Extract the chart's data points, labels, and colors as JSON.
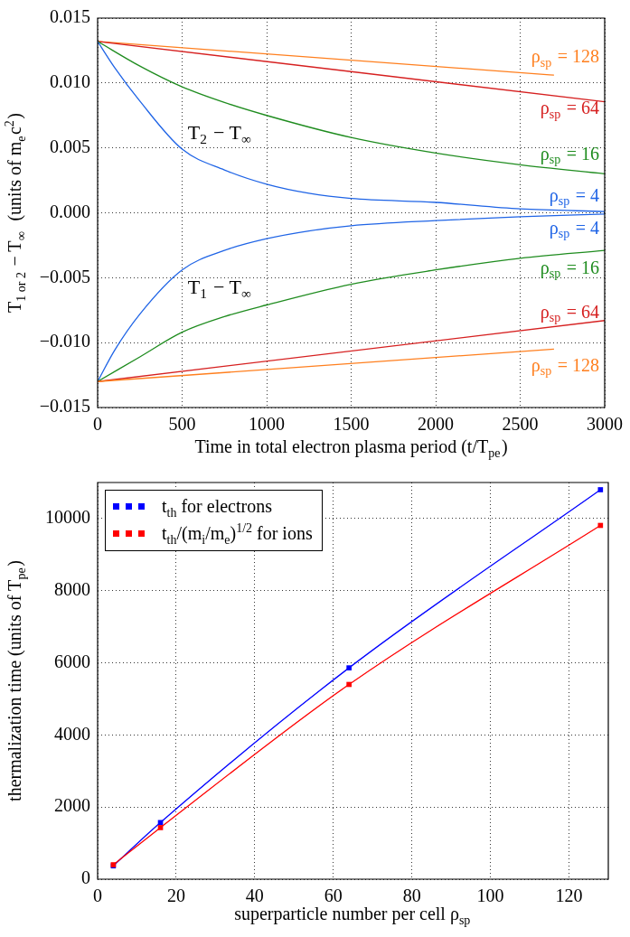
{
  "chart_data": [
    {
      "type": "line",
      "xlabel": "Time in total electron plasma period (t/T$_{pe}$)",
      "ylabel": "T$_{1 or 2}$ − T$_{∞}$  (units of m$_{e}$c$^{2}$)",
      "xlim": [
        0,
        3000
      ],
      "xticks": [
        0,
        500,
        1000,
        1500,
        2000,
        2500,
        3000
      ],
      "ylim": [
        -0.015,
        0.015
      ],
      "yticks": [
        {
          "value": -0.015,
          "label": "−0.015"
        },
        {
          "value": -0.01,
          "label": "−0.010"
        },
        {
          "value": -0.005,
          "label": "−0.005"
        },
        {
          "value": 0,
          "label": "0.000"
        },
        {
          "value": 0.005,
          "label": "0.005"
        },
        {
          "value": 0.01,
          "label": "0.010"
        },
        {
          "value": 0.015,
          "label": "0.015"
        }
      ],
      "grid": true,
      "annotations": [
        "T$_{2}$ − T$_{∞}$",
        "T$_{1}$ − T$_{∞}$"
      ],
      "series": [
        {
          "name": "ρ$_{sp}$ = 128",
          "color": "#ff7f1e",
          "x": [
            0,
            2700
          ],
          "values": [
            0.0132,
            0.0106
          ]
        },
        {
          "name": "ρ$_{sp}$ = 64",
          "color": "#d62020",
          "x": [
            0,
            3000
          ],
          "values": [
            0.0132,
            0.00855
          ]
        },
        {
          "name": "ρ$_{sp}$ = 16",
          "color": "#1f8c1f",
          "x": [
            0,
            250,
            500,
            750,
            1000,
            1500,
            2000,
            2500,
            3000
          ],
          "values": [
            0.0132,
            0.0113,
            0.0097,
            0.0085,
            0.0075,
            0.0058,
            0.0046,
            0.0037,
            0.003
          ]
        },
        {
          "name": "ρ$_{sp}$ = 4",
          "color": "#1f64e6",
          "x": [
            0,
            100,
            250,
            500,
            750,
            1000,
            1250,
            1500,
            2000,
            2500,
            3000
          ],
          "values": [
            0.0132,
            0.0112,
            0.0086,
            0.0049,
            0.0033,
            0.0022,
            0.0015,
            0.0011,
            0.0008,
            0.0003,
            0.0001
          ]
        },
        {
          "name": "ρ$_{sp}$ = 4",
          "color": "#1f64e6",
          "x": [
            0,
            100,
            250,
            500,
            750,
            1000,
            1250,
            1500,
            2000,
            2500,
            3000
          ],
          "values": [
            -0.013,
            -0.0106,
            -0.0078,
            -0.0044,
            -0.0029,
            -0.002,
            -0.0014,
            -0.001,
            -0.0006,
            -0.0003,
            -0.0001
          ]
        },
        {
          "name": "ρ$_{sp}$ = 16",
          "color": "#1f8c1f",
          "x": [
            0,
            250,
            500,
            750,
            1000,
            1500,
            2000,
            2500,
            3000
          ],
          "values": [
            -0.013,
            -0.0111,
            -0.0092,
            -0.008,
            -0.0071,
            -0.0055,
            -0.0044,
            -0.0035,
            -0.0029
          ]
        },
        {
          "name": "ρ$_{sp}$ = 64",
          "color": "#d62020",
          "x": [
            0,
            3000
          ],
          "values": [
            -0.013,
            -0.0083
          ]
        },
        {
          "name": "ρ$_{sp}$ = 128",
          "color": "#ff7f1e",
          "x": [
            0,
            2700
          ],
          "values": [
            -0.013,
            -0.0105
          ]
        }
      ]
    },
    {
      "type": "line",
      "xlabel": "superparticle number per cell ρ$_{sp}$",
      "ylabel": "thermalization time (units of T$_{pe}$)",
      "xlim": [
        0,
        130
      ],
      "xticks": [
        0,
        20,
        40,
        60,
        80,
        100,
        120
      ],
      "ylim": [
        0,
        11000
      ],
      "yticks": [
        0,
        2000,
        4000,
        6000,
        8000,
        10000
      ],
      "grid": true,
      "legend": "top left",
      "marker": "square",
      "x": [
        4,
        16,
        64,
        128
      ],
      "series": [
        {
          "name": "t$_{th}$ for electrons",
          "color": "#0000ff",
          "values": [
            370,
            1570,
            5860,
            10800
          ]
        },
        {
          "name": "t$_{th}$/(m$_{i}$/m$_{e}$)$^{1/2}$ for ions",
          "color": "#ff0000",
          "values": [
            400,
            1430,
            5400,
            9810
          ]
        }
      ]
    }
  ]
}
